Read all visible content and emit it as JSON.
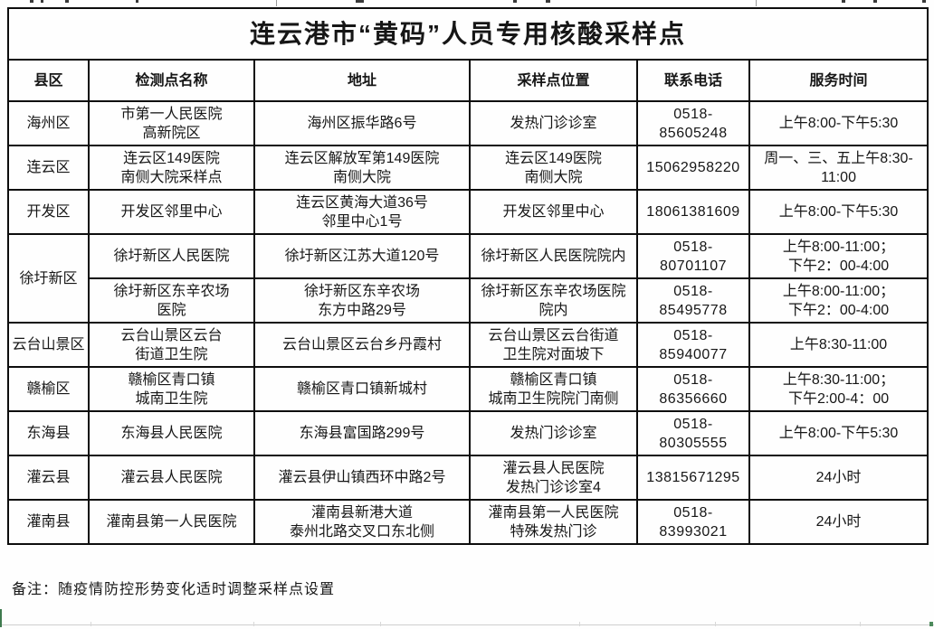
{
  "title": "连云港市“黄码”人员专用核酸采样点",
  "note": "备注：随疫情防控形势变化适时调整采样点设置",
  "colors": {
    "background": "#ffffff",
    "text": "#161616",
    "border": "#0d0d0d"
  },
  "table": {
    "headers": [
      "县区",
      "检测点名称",
      "地址",
      "采样点位置",
      "联系电话",
      "服务时间"
    ],
    "rows": [
      {
        "district": "海州区",
        "site": "市第一人民医院\n高新院区",
        "address": "海州区振华路6号",
        "location": "发热门诊诊室",
        "phone": "0518-\n85605248",
        "hours": "上午8:00-下午5:30"
      },
      {
        "district": "连云区",
        "site": "连云区149医院\n南侧大院采样点",
        "address": "连云区解放军第149医院\n南侧大院",
        "location": "连云区149医院\n南侧大院",
        "phone": "15062958220",
        "hours": "周一、三、五上午8:30-\n11:00"
      },
      {
        "district": "开发区",
        "site": "开发区邻里中心",
        "address": "连云区黄海大道36号\n邻里中心1号",
        "location": "开发区邻里中心",
        "phone": "18061381609",
        "hours": "上午8:00-下午5:30"
      },
      {
        "district": "徐圩新区",
        "site": "徐圩新区人民医院",
        "address": "徐圩新区江苏大道120号",
        "location": "徐圩新区人民医院院内",
        "phone": "0518-\n80701107",
        "hours": "上午8:00-11:00；\n下午2：00-4:00"
      },
      {
        "district": null,
        "site": "徐圩新区东辛农场\n医院",
        "address": "徐圩新区东辛农场\n东方中路29号",
        "location": "徐圩新区东辛农场医院\n院内",
        "phone": "0518-\n85495778",
        "hours": "上午8:00-11:00；\n下午2：00-4:00"
      },
      {
        "district": "云台山景区",
        "site": "云台山景区云台\n街道卫生院",
        "address": "云台山景区云台乡丹霞村",
        "location": "云台山景区云台街道\n卫生院对面坡下",
        "phone": "0518-\n85940077",
        "hours": "上午8:30-11:00"
      },
      {
        "district": "赣榆区",
        "site": "赣榆区青口镇\n城南卫生院",
        "address": "赣榆区青口镇新城村",
        "location": "赣榆区青口镇\n城南卫生院院门南侧",
        "phone": "0518-\n86356660",
        "hours": "上午8:30-11:00；\n下午2:00-4：00"
      },
      {
        "district": "东海县",
        "site": "东海县人民医院",
        "address": "东海县富国路299号",
        "location": "发热门诊诊室",
        "phone": "0518-\n80305555",
        "hours": "上午8:00-下午5:30"
      },
      {
        "district": "灌云县",
        "site": "灌云县人民医院",
        "address": "灌云县伊山镇西环中路2号",
        "location": "灌云县人民医院\n发热门诊诊室4",
        "phone": "13815671295",
        "hours": "24小时"
      },
      {
        "district": "灌南县",
        "site": "灌南县第一人民医院",
        "address": "灌南县新港大道\n泰州北路交叉口东北侧",
        "location": "灌南县第一人民医院\n特殊发热门诊",
        "phone": "0518-\n83993021",
        "hours": "24小时"
      }
    ]
  }
}
